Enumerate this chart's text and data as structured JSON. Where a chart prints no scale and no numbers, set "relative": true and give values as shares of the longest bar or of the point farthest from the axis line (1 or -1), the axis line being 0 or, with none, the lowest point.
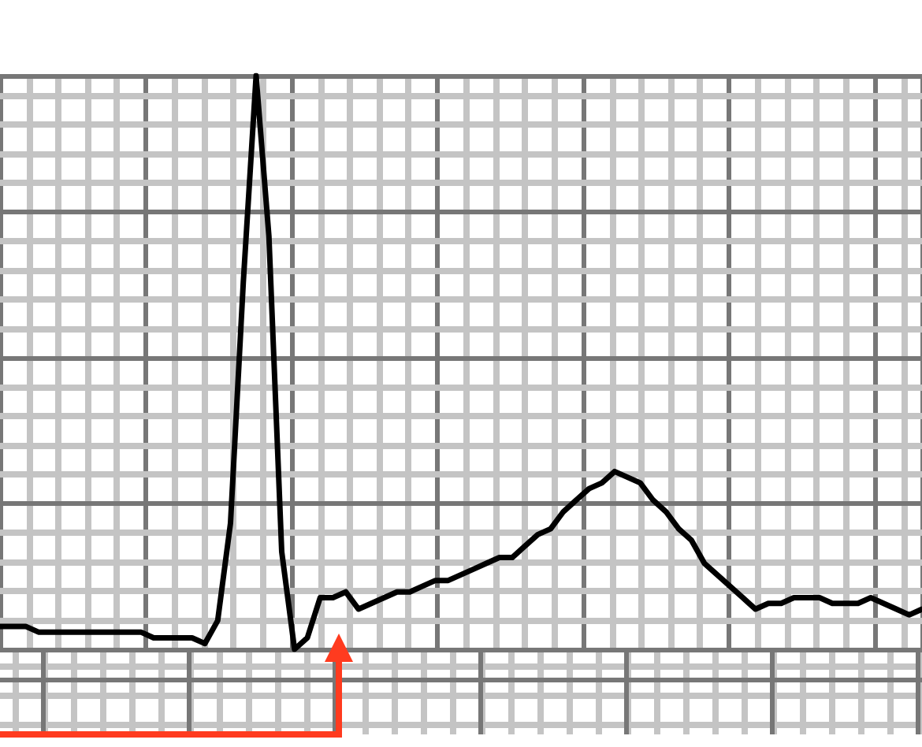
{
  "chart_data": {
    "type": "line",
    "relative": true,
    "grid": true,
    "line_style": "solid",
    "categories": [
      null,
      null,
      null,
      null,
      null,
      null,
      null,
      null,
      null,
      null,
      null,
      null,
      null,
      null,
      null,
      null,
      null,
      null,
      null,
      null,
      null,
      null,
      null,
      null,
      null,
      null,
      null,
      null,
      null,
      null,
      null,
      null,
      null,
      null,
      null,
      null,
      null,
      null,
      null,
      null,
      null,
      null,
      null,
      null,
      null,
      null,
      null,
      null,
      null,
      null,
      null,
      null,
      null,
      null,
      null,
      null,
      null,
      null,
      null,
      null,
      null,
      null,
      null,
      null,
      null,
      null,
      null,
      null,
      null,
      null,
      null,
      null,
      null
    ],
    "series": [
      {
        "color": "#000000",
        "values": [
          0.04,
          0.04,
          0.04,
          0.03,
          0.03,
          0.03,
          0.03,
          0.03,
          0.03,
          0.03,
          0.03,
          0.03,
          0.02,
          0.02,
          0.02,
          0.02,
          0.01,
          0.05,
          0.22,
          0.64,
          1,
          0.72,
          0.17,
          0,
          0.02,
          0.09,
          0.09,
          0.1,
          0.07,
          0.08,
          0.09,
          0.1,
          0.1,
          0.11,
          0.12,
          0.12,
          0.13,
          0.14,
          0.15,
          0.16,
          0.16,
          0.18,
          0.2,
          0.21,
          0.24,
          0.26,
          0.28,
          0.29,
          0.31,
          0.3,
          0.29,
          0.26,
          0.24,
          0.21,
          0.19,
          0.15,
          0.13,
          0.11,
          0.09,
          0.07,
          0.08,
          0.08,
          0.09,
          0.09,
          0.09,
          0.08,
          0.08,
          0.08,
          0.09,
          0.08,
          0.07,
          0.06,
          0.07
        ]
      }
    ]
  }
}
